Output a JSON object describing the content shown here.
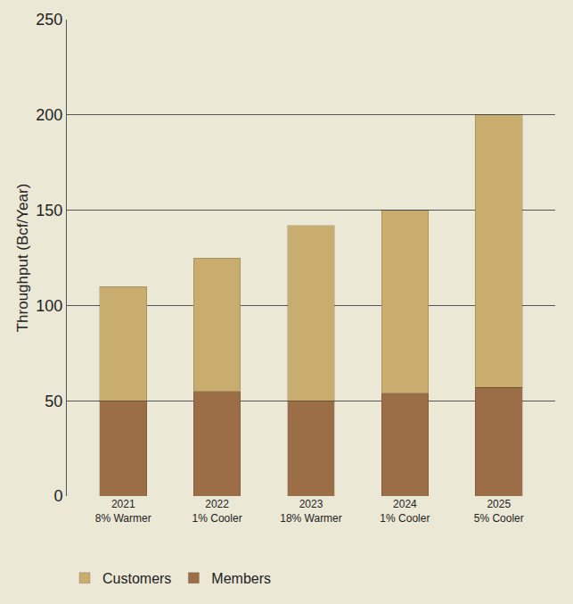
{
  "chart_data": {
    "type": "bar",
    "stacked": true,
    "y_label": "Throughput (Bcf/Year)",
    "categories": [
      "2021\n8% Warmer",
      "2022\n1% Cooler",
      "2023\n18% Warmer",
      "2024\n1% Cooler",
      "2025\n5% Cooler"
    ],
    "series": [
      {
        "name": "Members",
        "color": "#9b6e48",
        "values": [
          50,
          55,
          50,
          54,
          57
        ]
      },
      {
        "name": "Customers",
        "color": "#c9ad6e",
        "values": [
          60,
          70,
          92,
          96,
          143
        ]
      }
    ],
    "ylim": [
      0,
      250
    ],
    "yticks": [
      0,
      50,
      100,
      150,
      200,
      250
    ],
    "grid": true,
    "legend": "bottom"
  }
}
